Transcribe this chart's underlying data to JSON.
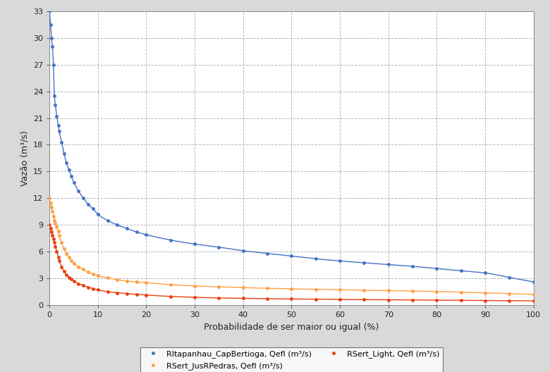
{
  "title": "",
  "xlabel": "Probabilidade de ser maior ou igual (%)",
  "ylabel": "Vazão (m³/s)",
  "xlim": [
    0,
    100
  ],
  "ylim": [
    0,
    33
  ],
  "yticks": [
    0,
    3,
    6,
    9,
    12,
    15,
    18,
    21,
    24,
    27,
    30,
    33
  ],
  "xticks": [
    0,
    10,
    20,
    30,
    40,
    50,
    60,
    70,
    80,
    90,
    100
  ],
  "series": [
    {
      "label": "RItapanhau_CapBertioga, Qefl (m³/s)",
      "color": "#4472C4",
      "marker": "o",
      "markersize": 2.5,
      "linewidth": 1.0
    },
    {
      "label": "RSert_JusRPedras, Qefl (m³/s)",
      "color": "#FFA040",
      "marker": "o",
      "markersize": 2.5,
      "linewidth": 1.0
    },
    {
      "label": "RSert_Light, Qefl (m³/s)",
      "color": "#E84010",
      "marker": "o",
      "markersize": 2.5,
      "linewidth": 1.0
    }
  ],
  "background_color": "#D9D9D9",
  "plot_background_color": "#FFFFFF",
  "grid_color": "#B0B8C8",
  "figsize": [
    7.8,
    5.28
  ],
  "dpi": 100,
  "legend_ncol": 2,
  "blue_x": [
    0.0,
    0.2,
    0.4,
    0.6,
    0.8,
    1.0,
    1.2,
    1.5,
    1.8,
    2.0,
    2.5,
    3.0,
    3.5,
    4.0,
    4.5,
    5.0,
    6.0,
    7.0,
    8.0,
    9.0,
    10.0,
    12.0,
    14.0,
    16.0,
    18.0,
    20.0,
    25.0,
    30.0,
    35.0,
    40.0,
    45.0,
    50.0,
    55.0,
    60.0,
    65.0,
    70.0,
    75.0,
    80.0,
    85.0,
    90.0,
    95.0,
    100.0
  ],
  "blue_y": [
    33.0,
    31.5,
    30.0,
    29.0,
    27.0,
    23.5,
    22.5,
    21.2,
    20.2,
    19.5,
    18.3,
    17.0,
    16.0,
    15.2,
    14.5,
    13.8,
    12.8,
    12.0,
    11.3,
    10.8,
    10.2,
    9.5,
    9.0,
    8.6,
    8.2,
    7.9,
    7.3,
    6.85,
    6.5,
    6.1,
    5.8,
    5.5,
    5.2,
    4.95,
    4.75,
    4.55,
    4.35,
    4.1,
    3.85,
    3.6,
    3.1,
    2.6
  ],
  "orange_x": [
    0.0,
    0.2,
    0.4,
    0.6,
    0.8,
    1.0,
    1.2,
    1.5,
    1.8,
    2.0,
    2.5,
    3.0,
    3.5,
    4.0,
    4.5,
    5.0,
    6.0,
    7.0,
    8.0,
    9.0,
    10.0,
    12.0,
    14.0,
    16.0,
    18.0,
    20.0,
    25.0,
    30.0,
    35.0,
    40.0,
    45.0,
    50.0,
    55.0,
    60.0,
    65.0,
    70.0,
    75.0,
    80.0,
    85.0,
    90.0,
    95.0,
    100.0
  ],
  "orange_y": [
    12.0,
    11.5,
    11.0,
    10.5,
    10.0,
    9.5,
    9.2,
    8.8,
    8.3,
    7.8,
    7.0,
    6.3,
    5.8,
    5.4,
    5.0,
    4.7,
    4.3,
    4.0,
    3.7,
    3.5,
    3.3,
    3.05,
    2.85,
    2.7,
    2.6,
    2.5,
    2.3,
    2.15,
    2.05,
    1.95,
    1.88,
    1.82,
    1.77,
    1.72,
    1.67,
    1.62,
    1.57,
    1.52,
    1.45,
    1.38,
    1.28,
    1.2
  ],
  "red_x": [
    0.0,
    0.2,
    0.4,
    0.6,
    0.8,
    1.0,
    1.2,
    1.5,
    1.8,
    2.0,
    2.5,
    3.0,
    3.5,
    4.0,
    4.5,
    5.0,
    6.0,
    7.0,
    8.0,
    9.0,
    10.0,
    12.0,
    14.0,
    16.0,
    18.0,
    20.0,
    25.0,
    30.0,
    35.0,
    40.0,
    45.0,
    50.0,
    55.0,
    60.0,
    65.0,
    70.0,
    75.0,
    80.0,
    85.0,
    90.0,
    95.0,
    100.0
  ],
  "red_y": [
    9.0,
    8.6,
    8.2,
    7.8,
    7.4,
    7.0,
    6.6,
    6.0,
    5.4,
    5.0,
    4.3,
    3.8,
    3.4,
    3.1,
    2.9,
    2.7,
    2.4,
    2.2,
    2.0,
    1.85,
    1.7,
    1.5,
    1.38,
    1.28,
    1.2,
    1.12,
    0.97,
    0.87,
    0.8,
    0.75,
    0.71,
    0.68,
    0.65,
    0.63,
    0.61,
    0.59,
    0.57,
    0.55,
    0.53,
    0.51,
    0.49,
    0.47
  ]
}
